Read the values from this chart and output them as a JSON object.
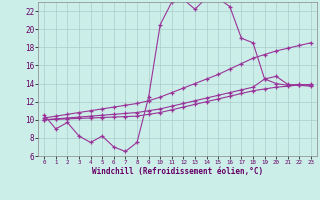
{
  "xlabel": "Windchill (Refroidissement éolien,°C)",
  "background_color": "#cceee8",
  "grid_color": "#aacccc",
  "line_color": "#993399",
  "xlim": [
    -0.5,
    23.5
  ],
  "ylim": [
    6,
    23
  ],
  "xticks": [
    0,
    1,
    2,
    3,
    4,
    5,
    6,
    7,
    8,
    9,
    10,
    11,
    12,
    13,
    14,
    15,
    16,
    17,
    18,
    19,
    20,
    21,
    22,
    23
  ],
  "yticks": [
    6,
    8,
    10,
    12,
    14,
    16,
    18,
    20,
    22
  ],
  "curve1_x": [
    0,
    1,
    2,
    3,
    4,
    5,
    6,
    7,
    8,
    9,
    10,
    11,
    12,
    13,
    14,
    15,
    16,
    17,
    18,
    19,
    20,
    21,
    22,
    23
  ],
  "curve1_y": [
    10.5,
    9.0,
    9.7,
    8.2,
    7.5,
    8.2,
    7.0,
    6.5,
    7.5,
    12.5,
    20.5,
    23.0,
    23.3,
    22.2,
    23.5,
    23.4,
    22.5,
    19.0,
    18.5,
    14.5,
    14.0,
    13.8,
    13.9,
    13.8
  ],
  "curve2_x": [
    0,
    1,
    2,
    3,
    4,
    5,
    6,
    7,
    8,
    9,
    10,
    11,
    12,
    13,
    14,
    15,
    16,
    17,
    18,
    19,
    20,
    21,
    22,
    23
  ],
  "curve2_y": [
    10.2,
    10.4,
    10.6,
    10.8,
    11.0,
    11.2,
    11.4,
    11.6,
    11.8,
    12.1,
    12.5,
    13.0,
    13.5,
    14.0,
    14.5,
    15.0,
    15.6,
    16.2,
    16.8,
    17.2,
    17.6,
    17.9,
    18.2,
    18.5
  ],
  "curve3_x": [
    0,
    1,
    2,
    3,
    4,
    5,
    6,
    7,
    8,
    9,
    10,
    11,
    12,
    13,
    14,
    15,
    16,
    17,
    18,
    19,
    20,
    21,
    22,
    23
  ],
  "curve3_y": [
    10.0,
    10.1,
    10.2,
    10.3,
    10.4,
    10.5,
    10.6,
    10.7,
    10.8,
    11.0,
    11.2,
    11.5,
    11.8,
    12.1,
    12.4,
    12.7,
    13.0,
    13.3,
    13.6,
    14.5,
    14.8,
    13.9,
    13.8,
    13.7
  ],
  "curve4_x": [
    0,
    1,
    2,
    3,
    4,
    5,
    6,
    7,
    8,
    9,
    10,
    11,
    12,
    13,
    14,
    15,
    16,
    17,
    18,
    19,
    20,
    21,
    22,
    23
  ],
  "curve4_y": [
    10.0,
    10.05,
    10.1,
    10.15,
    10.2,
    10.25,
    10.3,
    10.35,
    10.4,
    10.6,
    10.8,
    11.1,
    11.4,
    11.7,
    12.0,
    12.3,
    12.6,
    12.9,
    13.2,
    13.4,
    13.6,
    13.7,
    13.85,
    13.9
  ]
}
